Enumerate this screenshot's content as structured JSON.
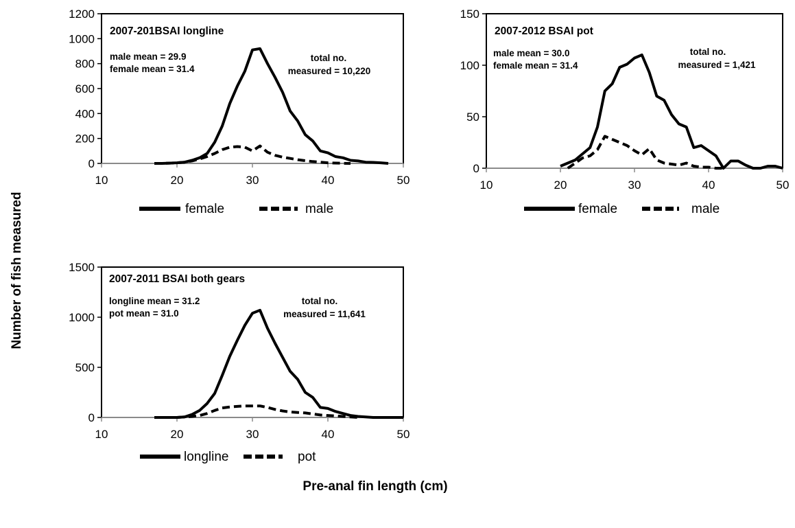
{
  "figure": {
    "ylabel": "Number of fish measured",
    "xlabel": "Pre-anal fin length (cm)"
  },
  "chart_data": [
    {
      "type": "line",
      "title": "2007-201BSAI longline",
      "annotations": {
        "means": [
          "male mean = 29.9",
          "female mean = 31.4"
        ],
        "total": [
          "total no.",
          "measured = 10,220"
        ]
      },
      "xlim": [
        10,
        50
      ],
      "ylim": [
        0,
        1200
      ],
      "xticks": [
        10,
        20,
        30,
        40,
        50
      ],
      "yticks": [
        0,
        200,
        400,
        600,
        800,
        1000,
        1200
      ],
      "series": [
        {
          "name": "female",
          "style": "solid",
          "x": [
            17,
            18,
            19,
            20,
            21,
            22,
            23,
            24,
            25,
            26,
            27,
            28,
            29,
            30,
            31,
            32,
            33,
            34,
            35,
            36,
            37,
            38,
            39,
            40,
            41,
            42,
            43,
            44,
            45,
            46,
            47,
            48
          ],
          "values": [
            0,
            0,
            2,
            5,
            10,
            25,
            45,
            80,
            170,
            300,
            480,
            620,
            740,
            910,
            920,
            800,
            690,
            570,
            420,
            340,
            230,
            180,
            100,
            85,
            55,
            45,
            25,
            20,
            10,
            8,
            5,
            0
          ]
        },
        {
          "name": "male",
          "style": "dashed",
          "x": [
            17,
            18,
            19,
            20,
            21,
            22,
            23,
            24,
            25,
            26,
            27,
            28,
            29,
            30,
            31,
            32,
            33,
            34,
            35,
            36,
            37,
            38,
            39,
            40,
            41,
            42,
            43
          ],
          "values": [
            0,
            0,
            2,
            5,
            10,
            20,
            35,
            55,
            80,
            110,
            130,
            135,
            130,
            100,
            140,
            90,
            65,
            50,
            40,
            30,
            22,
            15,
            10,
            5,
            3,
            1,
            0
          ]
        }
      ]
    },
    {
      "type": "line",
      "title": "2007-2012 BSAI pot",
      "annotations": {
        "means": [
          "male mean = 30.0",
          "female mean = 31.4"
        ],
        "total": [
          "total no.",
          "measured = 1,421"
        ]
      },
      "xlim": [
        10,
        50
      ],
      "ylim": [
        0,
        150
      ],
      "xticks": [
        10,
        20,
        30,
        40,
        50
      ],
      "yticks": [
        0,
        50,
        100,
        150
      ],
      "series": [
        {
          "name": "female",
          "style": "solid",
          "x": [
            20,
            21,
            22,
            23,
            24,
            25,
            26,
            27,
            28,
            29,
            30,
            31,
            32,
            33,
            34,
            35,
            36,
            37,
            38,
            39,
            40,
            41,
            42,
            43,
            44,
            45,
            46,
            47,
            48,
            49,
            50
          ],
          "values": [
            2,
            5,
            8,
            14,
            20,
            40,
            75,
            82,
            98,
            101,
            107,
            110,
            93,
            70,
            66,
            52,
            43,
            40,
            20,
            22,
            17,
            12,
            0,
            7,
            7,
            3,
            0,
            0,
            2,
            2,
            0
          ]
        },
        {
          "name": "male",
          "style": "dashed",
          "x": [
            21,
            22,
            23,
            24,
            25,
            26,
            27,
            28,
            29,
            30,
            31,
            32,
            33,
            34,
            35,
            36,
            37,
            38,
            39,
            40,
            41,
            42
          ],
          "values": [
            0,
            5,
            10,
            12,
            18,
            31,
            28,
            25,
            22,
            17,
            13,
            19,
            8,
            5,
            4,
            3,
            5,
            2,
            1,
            1,
            0,
            0
          ]
        }
      ]
    },
    {
      "type": "line",
      "title": "2007-2011 BSAI both gears",
      "annotations": {
        "means": [
          "longline mean = 31.2",
          "pot mean = 31.0"
        ],
        "total": [
          "total no.",
          "measured = 11,641"
        ]
      },
      "xlim": [
        10,
        50
      ],
      "ylim": [
        0,
        1500
      ],
      "xticks": [
        10,
        20,
        30,
        40,
        50
      ],
      "yticks": [
        0,
        500,
        1000,
        1500
      ],
      "series": [
        {
          "name": "longline",
          "style": "solid",
          "x": [
            17,
            18,
            19,
            20,
            21,
            22,
            23,
            24,
            25,
            26,
            27,
            28,
            29,
            30,
            31,
            32,
            33,
            34,
            35,
            36,
            37,
            38,
            39,
            40,
            41,
            42,
            43,
            44,
            45,
            46,
            47,
            48,
            49,
            50
          ],
          "values": [
            0,
            0,
            0,
            0,
            5,
            30,
            70,
            140,
            240,
            420,
            610,
            770,
            920,
            1040,
            1070,
            890,
            740,
            600,
            460,
            380,
            250,
            200,
            100,
            90,
            60,
            40,
            20,
            10,
            5,
            0,
            0,
            0,
            0,
            0
          ]
        },
        {
          "name": "pot",
          "style": "dashed",
          "x": [
            20,
            21,
            22,
            23,
            24,
            25,
            26,
            27,
            28,
            29,
            30,
            31,
            32,
            33,
            34,
            35,
            36,
            37,
            38,
            39,
            40,
            41,
            42,
            43,
            44
          ],
          "values": [
            0,
            5,
            10,
            20,
            40,
            70,
            95,
            105,
            110,
            115,
            115,
            115,
            100,
            80,
            65,
            55,
            50,
            45,
            35,
            25,
            20,
            15,
            10,
            5,
            0
          ]
        }
      ]
    }
  ]
}
